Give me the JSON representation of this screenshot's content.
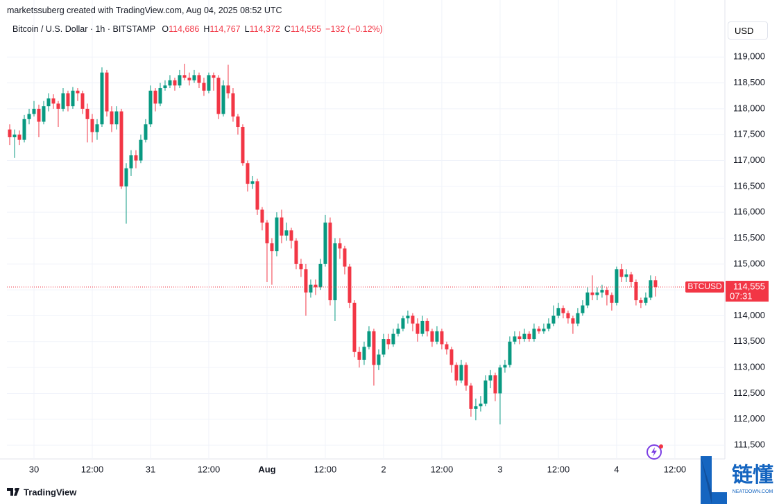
{
  "chart_data": {
    "type": "candlestick",
    "credit": "marketssuberg created with TradingView.com, Aug 04, 2025 08:52 UTC",
    "symbol": "Bitcoin / U.S. Dollar · 1h · BITSTAMP",
    "ohlc": [
      {
        "key": "O",
        "value": "114,686"
      },
      {
        "key": "H",
        "value": "114,767"
      },
      {
        "key": "L",
        "value": "114,372"
      },
      {
        "key": "C",
        "value": "114,555"
      }
    ],
    "change": "−132 (−0.12%)",
    "currency": "USD",
    "ticker": "BTCUSD",
    "last_price_label": "114,555",
    "countdown": "07:31",
    "brand": "TradingView",
    "watermark": "链懂",
    "watermark_sub": "NEATDOWN.COM",
    "up_color": "#089981",
    "down_color": "#f23645",
    "grid": true,
    "x": [
      -5,
      -4,
      -3,
      -2,
      -1,
      0,
      1,
      2,
      3,
      4,
      5,
      6,
      7,
      8,
      9,
      10,
      11,
      12,
      13,
      14,
      15,
      16,
      17,
      18,
      19,
      20,
      21,
      22,
      23,
      24,
      25,
      26,
      27,
      28,
      29,
      30,
      31,
      32,
      33,
      34,
      35,
      36,
      37,
      38,
      39,
      40,
      41,
      42,
      43,
      44,
      45,
      46,
      47,
      48,
      49,
      50,
      51,
      52,
      53,
      54,
      55,
      56,
      57,
      58,
      59,
      60,
      61,
      62,
      63,
      64,
      65,
      66,
      67,
      68,
      69,
      70,
      71,
      72,
      73,
      74,
      75,
      76,
      77,
      78,
      79,
      80,
      81,
      82,
      83,
      84,
      85,
      86,
      87,
      88,
      89,
      90,
      91,
      92,
      93,
      94,
      95,
      96,
      97,
      98,
      99,
      100,
      101,
      102,
      103,
      104,
      105,
      106,
      107,
      108,
      109,
      110,
      111,
      112,
      113,
      114,
      115,
      116,
      117,
      118,
      119,
      120,
      121,
      122,
      123,
      124,
      125,
      126,
      127,
      128
    ],
    "open": [
      117600,
      117450,
      117500,
      117400,
      117800,
      117900,
      118000,
      117750,
      118050,
      118200,
      118100,
      118000,
      118300,
      118050,
      118350,
      118300,
      118000,
      117800,
      117550,
      117700,
      118700,
      117950,
      117700,
      117950,
      116500,
      116850,
      117100,
      117000,
      117400,
      117700,
      118350,
      118100,
      118400,
      118450,
      118550,
      118450,
      118650,
      118600,
      118550,
      118650,
      118500,
      118350,
      118650,
      118600,
      117900,
      118450,
      118300,
      117850,
      117650,
      116950,
      116550,
      116600,
      116050,
      115800,
      115400,
      115250,
      115900,
      115550,
      115650,
      115450,
      115000,
      114900,
      114450,
      114600,
      114550,
      115000,
      115800,
      114300,
      115400,
      115300,
      114950,
      114250,
      113300,
      113150,
      113400,
      113700,
      113050,
      113250,
      113550,
      113450,
      113650,
      113750,
      113950,
      114000,
      113850,
      113650,
      113900,
      113700,
      113500,
      113700,
      113450,
      113350,
      113050,
      112750,
      113050,
      112650,
      112200,
      112250,
      112300,
      112750,
      112850,
      112500,
      113000,
      113050,
      113500,
      113600,
      113550,
      113650,
      113550,
      113750,
      113700,
      113750,
      113850,
      114000,
      114150,
      114050,
      113950,
      113850,
      114050,
      114200,
      114450,
      114400,
      114450,
      114500,
      114400,
      114250,
      114900,
      114750,
      114800,
      114650,
      114300,
      114250,
      114350,
      114686
    ],
    "high": [
      117700,
      117600,
      117580,
      117880,
      118000,
      118150,
      118080,
      118150,
      118300,
      118280,
      118150,
      118400,
      118350,
      118420,
      118400,
      118350,
      118100,
      117900,
      117800,
      118800,
      118750,
      118050,
      118050,
      118000,
      116950,
      117200,
      117200,
      117500,
      117800,
      118450,
      118400,
      118500,
      118550,
      118650,
      118600,
      118750,
      118870,
      118700,
      118750,
      118700,
      118600,
      118700,
      118700,
      118650,
      118550,
      118850,
      118400,
      117900,
      117700,
      117000,
      116700,
      116650,
      116100,
      115850,
      115500,
      116000,
      116050,
      115800,
      115700,
      115500,
      115100,
      115000,
      114700,
      114700,
      115100,
      115950,
      115900,
      115500,
      115500,
      115350,
      115000,
      114300,
      113400,
      113500,
      113800,
      113750,
      113350,
      113650,
      113650,
      113750,
      113850,
      114000,
      114100,
      114050,
      113950,
      114000,
      113950,
      113750,
      113800,
      113750,
      113500,
      113400,
      113100,
      113150,
      113100,
      112700,
      112400,
      112450,
      112850,
      112950,
      112900,
      113050,
      113150,
      113600,
      113700,
      113700,
      113750,
      113700,
      113850,
      113800,
      113850,
      113950,
      114200,
      114250,
      114200,
      114100,
      114000,
      114150,
      114300,
      114550,
      114780,
      114550,
      114600,
      114550,
      114450,
      114950,
      115000,
      114900,
      114850,
      114700,
      114350,
      114450,
      114780,
      114767
    ],
    "low": [
      117300,
      117050,
      117300,
      117350,
      117700,
      117850,
      117450,
      117700,
      117950,
      118000,
      117650,
      117950,
      117950,
      118000,
      118150,
      117900,
      117350,
      117350,
      117400,
      117650,
      117850,
      117550,
      117600,
      116450,
      115780,
      116700,
      116850,
      116950,
      117350,
      117650,
      117950,
      118050,
      118350,
      118400,
      118350,
      118400,
      118550,
      118450,
      118500,
      118400,
      118250,
      118300,
      118350,
      117800,
      117850,
      118200,
      117750,
      117500,
      116900,
      116400,
      116450,
      115950,
      115650,
      114650,
      114600,
      115150,
      115400,
      115450,
      115300,
      114900,
      114750,
      114000,
      114350,
      114400,
      114500,
      114950,
      114200,
      113900,
      115100,
      114800,
      114150,
      113200,
      113000,
      113050,
      113350,
      112650,
      112950,
      113200,
      113350,
      113400,
      113600,
      113700,
      113850,
      113700,
      113500,
      113600,
      113600,
      113400,
      113450,
      113350,
      113250,
      112900,
      112650,
      112700,
      112550,
      112050,
      111980,
      112150,
      112250,
      112600,
      112350,
      111900,
      112900,
      113000,
      113450,
      113450,
      113500,
      113500,
      113500,
      113650,
      113650,
      113700,
      113800,
      113950,
      113950,
      113850,
      113650,
      113800,
      114000,
      114150,
      114300,
      114300,
      114350,
      114200,
      114100,
      114200,
      114650,
      114650,
      114550,
      114200,
      114150,
      114200,
      114300,
      114372
    ],
    "close": [
      117450,
      117500,
      117400,
      117800,
      117900,
      118000,
      117750,
      118050,
      118200,
      118100,
      118000,
      118300,
      118050,
      118350,
      118300,
      118000,
      117800,
      117550,
      117700,
      118700,
      117950,
      117700,
      117950,
      116500,
      116850,
      117100,
      117000,
      117400,
      117700,
      118350,
      118100,
      118400,
      118450,
      118550,
      118450,
      118650,
      118600,
      118550,
      118650,
      118500,
      118350,
      118650,
      118600,
      117900,
      118450,
      118300,
      117850,
      117650,
      116950,
      116550,
      116600,
      116050,
      115800,
      115400,
      115250,
      115900,
      115550,
      115650,
      115450,
      115000,
      114900,
      114450,
      114600,
      114550,
      115000,
      115800,
      114300,
      115400,
      115300,
      114950,
      114250,
      113300,
      113150,
      113400,
      113700,
      113050,
      113250,
      113550,
      113450,
      113650,
      113750,
      113950,
      114000,
      113850,
      113650,
      113900,
      113700,
      113500,
      113700,
      113450,
      113350,
      113050,
      112750,
      113050,
      112650,
      112200,
      112250,
      112300,
      112750,
      112850,
      112500,
      113000,
      113050,
      113500,
      113600,
      113550,
      113650,
      113550,
      113750,
      113700,
      113750,
      113850,
      114000,
      114150,
      114050,
      113950,
      113850,
      114050,
      114200,
      114450,
      114400,
      114450,
      114500,
      114400,
      114250,
      114900,
      114750,
      114800,
      114650,
      114300,
      114250,
      114350,
      114686,
      114555
    ],
    "xlim": [
      -5.57,
      142.3
    ],
    "xticks": [
      {
        "value": 0,
        "label": "30"
      },
      {
        "value": 12,
        "label": "12:00"
      },
      {
        "value": 24,
        "label": "31"
      },
      {
        "value": 36,
        "label": "12:00"
      },
      {
        "value": 48,
        "label": "Aug"
      },
      {
        "value": 60,
        "label": "12:00"
      },
      {
        "value": 72,
        "label": "2"
      },
      {
        "value": 84,
        "label": "12:00"
      },
      {
        "value": 96,
        "label": "3"
      },
      {
        "value": 108,
        "label": "12:00"
      },
      {
        "value": 120,
        "label": "4"
      },
      {
        "value": 132,
        "label": "12:00"
      }
    ],
    "ylim": [
      111260,
      119700
    ],
    "yticks": [
      {
        "value": 111500,
        "label": "111,500"
      },
      {
        "value": 112000,
        "label": "112,000"
      },
      {
        "value": 112500,
        "label": "112,500"
      },
      {
        "value": 113000,
        "label": "113,000"
      },
      {
        "value": 113500,
        "label": "113,500"
      },
      {
        "value": 114000,
        "label": "114,000"
      },
      {
        "value": 114500,
        "label": "114,500"
      },
      {
        "value": 115000,
        "label": "115,000"
      },
      {
        "value": 115500,
        "label": "115,500"
      },
      {
        "value": 116000,
        "label": "116,000"
      },
      {
        "value": 116500,
        "label": "116,500"
      },
      {
        "value": 117000,
        "label": "117,000"
      },
      {
        "value": 117500,
        "label": "117,500"
      },
      {
        "value": 118000,
        "label": "118,000"
      },
      {
        "value": 118500,
        "label": "118,500"
      },
      {
        "value": 119000,
        "label": "119,000"
      }
    ]
  }
}
